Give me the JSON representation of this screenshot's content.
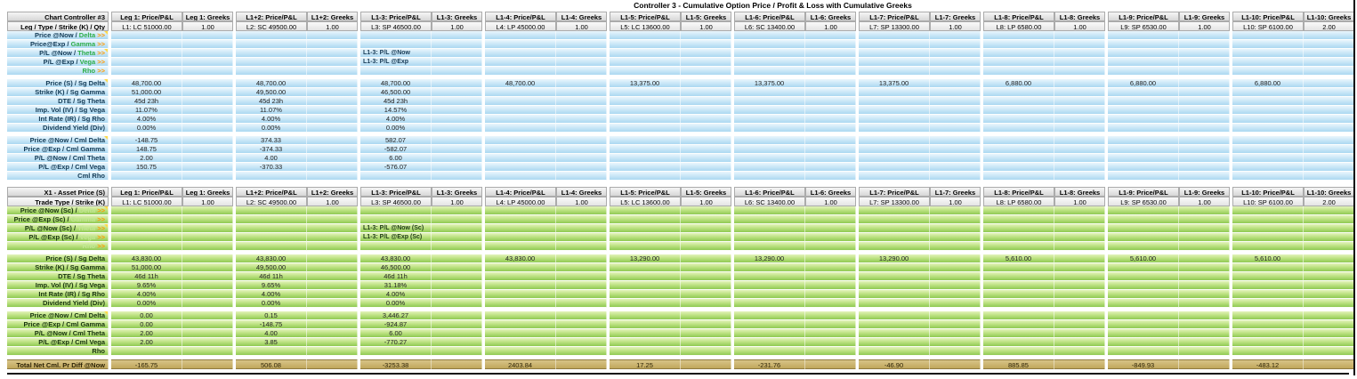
{
  "title": "Controller 3 - Cumulative Option Price / Profit & Loss with Cumulative Greeks",
  "arrow_symbol": ">>",
  "palette": {
    "c-gray-hi": "#f5f5f5",
    "c-gray-lo": "#d7d7d7",
    "c-blue-hi": "#eaf6fd",
    "c-blue-lo": "#abd8f1",
    "c-green-hi": "#e3f3bb",
    "c-green-lo": "#8fca52",
    "c-tan-hi": "#d8c488",
    "c-tan-lo": "#c0a75c",
    "c-greek": "#2fae4a",
    "c-greek-pale": "#c2e794",
    "c-arrow": "#ff9a00",
    "c-flag": "#ffd94a"
  },
  "groups": [
    {
      "pl": "Leg 1: Price/P&L",
      "greeks": "Leg 1: Greeks",
      "leg": "L1: LC 51000.00",
      "qty": "1.00"
    },
    {
      "pl": "L1+2: Price/P&L",
      "greeks": "L1+2: Greeks",
      "leg": "L2: SC 49500.00",
      "qty": "1.00"
    },
    {
      "pl": "L1-3: Price/P&L",
      "greeks": "L1-3: Greeks",
      "leg": "L3: SP 46500.00",
      "qty": "1.00"
    },
    {
      "pl": "L1-4: Price/P&L",
      "greeks": "L1-4: Greeks",
      "leg": "L4: LP 45000.00",
      "qty": "1.00"
    },
    {
      "pl": "L1-5: Price/P&L",
      "greeks": "L1-5: Greeks",
      "leg": "L5: LC 13600.00",
      "qty": "1.00"
    },
    {
      "pl": "L1-6: Price/P&L",
      "greeks": "L1-6: Greeks",
      "leg": "L6: SC 13400.00",
      "qty": "1.00"
    },
    {
      "pl": "L1-7: Price/P&L",
      "greeks": "L1-7: Greeks",
      "leg": "L7: SP 13300.00",
      "qty": "1.00"
    },
    {
      "pl": "L1-8: Price/P&L",
      "greeks": "L1-8: Greeks",
      "leg": "L8: LP 6580.00",
      "qty": "1.00"
    },
    {
      "pl": "L1-9: Price/P&L",
      "greeks": "L1-9: Greeks",
      "leg": "L9: SP 6530.00",
      "qty": "1.00"
    },
    {
      "pl": "L1-10: Price/P&L",
      "greeks": "L1-10: Greeks",
      "leg": "L10: SP 6100.00",
      "qty": "2.00"
    }
  ],
  "sections": [
    {
      "theme": "blue",
      "corner": "Chart Controller #3",
      "leg_label": "Leg / Type / Strike (K) / Qty",
      "rows": [
        {
          "t": "greek",
          "label": "Price @Now /",
          "greek": "Delta",
          "flag": true
        },
        {
          "t": "greek",
          "label": "Price@Exp /",
          "greek": "Gamma"
        },
        {
          "t": "greek",
          "label": "P/L @Now /",
          "greek": "Theta",
          "flag": true,
          "notes": {
            "2": "L1-3: P/L @Now"
          }
        },
        {
          "t": "greek",
          "label": "P/L @Exp /",
          "greek": "Vega",
          "notes": {
            "2": "L1-3: P/L @Exp"
          }
        },
        {
          "t": "greek",
          "label": "",
          "greek": "Rho"
        },
        {
          "t": "gap"
        },
        {
          "t": "data",
          "label": "Price (S) / Sg Delta",
          "flag": true,
          "values": [
            "48,700.00",
            "48,700.00",
            "48,700.00",
            "48,700.00",
            "13,375.00",
            "13,375.00",
            "13,375.00",
            "6,880.00",
            "6,880.00",
            "6,880.00"
          ]
        },
        {
          "t": "data",
          "label": "Strike (K) / Sg Gamma",
          "values": [
            "51,000.00",
            "49,500.00",
            "46,500.00",
            "",
            "",
            "",
            "",
            "",
            "",
            ""
          ]
        },
        {
          "t": "data",
          "label": "DTE / Sg Theta",
          "values": [
            "45d 23h",
            "45d 23h",
            "45d 23h",
            "",
            "",
            "",
            "",
            "",
            "",
            ""
          ]
        },
        {
          "t": "data",
          "label": "Imp. Vol (IV) / Sg Vega",
          "values": [
            "11.07%",
            "11.07%",
            "14.57%",
            "",
            "",
            "",
            "",
            "",
            "",
            ""
          ]
        },
        {
          "t": "data",
          "label": "Int Rate (IR) / Sg Rho",
          "values": [
            "4.00%",
            "4.00%",
            "4.00%",
            "",
            "",
            "",
            "",
            "",
            "",
            ""
          ]
        },
        {
          "t": "data",
          "label": "Dividend Yield (Div)",
          "values": [
            "0.00%",
            "0.00%",
            "0.00%",
            "",
            "",
            "",
            "",
            "",
            "",
            ""
          ]
        },
        {
          "t": "gap"
        },
        {
          "t": "data",
          "label": "Price @Now / Cml Delta",
          "flag": true,
          "values": [
            "-148.75",
            "374.33",
            "582.07",
            "",
            "",
            "",
            "",
            "",
            "",
            ""
          ]
        },
        {
          "t": "data",
          "label": "Price @Exp / Cml Gamma",
          "values": [
            "148.75",
            "-374.33",
            "-582.07",
            "",
            "",
            "",
            "",
            "",
            "",
            ""
          ]
        },
        {
          "t": "data",
          "label": "P/L @Now / Cml Theta",
          "values": [
            "2.00",
            "4.00",
            "6.00",
            "",
            "",
            "",
            "",
            "",
            "",
            ""
          ]
        },
        {
          "t": "data",
          "label": "P/L @Exp / Cml Vega",
          "values": [
            "150.75",
            "-370.33",
            "-576.07",
            "",
            "",
            "",
            "",
            "",
            "",
            ""
          ]
        },
        {
          "t": "data",
          "label": "Cml Rho",
          "values": [
            "",
            "",
            "",
            "",
            "",
            "",
            "",
            "",
            "",
            ""
          ]
        }
      ]
    },
    {
      "theme": "green",
      "corner": "X1 - Asset Price (S)",
      "leg_label": "Trade Type / Strike (K)",
      "rows": [
        {
          "t": "greek",
          "label": "Price @Now (Sc) /",
          "greek": "Delta",
          "flag": true
        },
        {
          "t": "greek",
          "label": "Price @Exp (Sc) /",
          "greek": "Gamma"
        },
        {
          "t": "greek",
          "label": "P/L @Now (Sc) /",
          "greek": "Theta",
          "flag": true,
          "notes": {
            "2": "L1-3: P/L @Now (Sc)"
          }
        },
        {
          "t": "greek",
          "label": "P/L @Exp (Sc) /",
          "greek": "Vega",
          "notes": {
            "2": "L1-3: P/L @Exp (Sc)"
          }
        },
        {
          "t": "greek",
          "label": "",
          "greek": "Rho"
        },
        {
          "t": "gap"
        },
        {
          "t": "data",
          "label": "Price (S) / Sg Delta",
          "values": [
            "43,830.00",
            "43,830.00",
            "43,830.00",
            "43,830.00",
            "13,290.00",
            "13,290.00",
            "13,290.00",
            "5,610.00",
            "5,610.00",
            "5,610.00"
          ]
        },
        {
          "t": "data",
          "label": "Strike (K) / Sg Gamma",
          "values": [
            "51,000.00",
            "49,500.00",
            "46,500.00",
            "",
            "",
            "",
            "",
            "",
            "",
            ""
          ]
        },
        {
          "t": "data",
          "label": "DTE / Sg Theta",
          "values": [
            "46d 11h",
            "46d 11h",
            "46d 11h",
            "",
            "",
            "",
            "",
            "",
            "",
            ""
          ]
        },
        {
          "t": "data",
          "label": "Imp. Vol (IV) / Sg Vega",
          "values": [
            "9.65%",
            "9.65%",
            "31.18%",
            "",
            "",
            "",
            "",
            "",
            "",
            ""
          ]
        },
        {
          "t": "data",
          "label": "Int Rate (IR) / Sg Rho",
          "values": [
            "4.00%",
            "4.00%",
            "4.00%",
            "",
            "",
            "",
            "",
            "",
            "",
            ""
          ]
        },
        {
          "t": "data",
          "label": "Dividend Yield (Div)",
          "values": [
            "0.00%",
            "0.00%",
            "0.00%",
            "",
            "",
            "",
            "",
            "",
            "",
            ""
          ]
        },
        {
          "t": "gap"
        },
        {
          "t": "data",
          "label": "Price @Now / Cml Delta",
          "flag": true,
          "values": [
            "0.00",
            "0.15",
            "3,446.27",
            "",
            "",
            "",
            "",
            "",
            "",
            ""
          ]
        },
        {
          "t": "data",
          "label": "Price @Exp / Cml Gamma",
          "values": [
            "0.00",
            "-148.75",
            "-924.87",
            "",
            "",
            "",
            "",
            "",
            "",
            ""
          ]
        },
        {
          "t": "data",
          "label": "P/L @Now / Cml Theta",
          "values": [
            "2.00",
            "4.00",
            "6.00",
            "",
            "",
            "",
            "",
            "",
            "",
            ""
          ]
        },
        {
          "t": "data",
          "label": "P/L @Exp / Cml Vega",
          "values": [
            "2.00",
            "3.85",
            "-770.27",
            "",
            "",
            "",
            "",
            "",
            "",
            ""
          ]
        },
        {
          "t": "data",
          "label": "Rho",
          "values": [
            "",
            "",
            "",
            "",
            "",
            "",
            "",
            "",
            "",
            ""
          ]
        },
        {
          "t": "gap"
        },
        {
          "t": "total",
          "label": "Total Net Cml. Pr Diff @Now",
          "values": [
            "-165.75",
            "506.08",
            "-3253.38",
            "2403.84",
            "17.25",
            "-231.76",
            "-46.90",
            "885.85",
            "-849.93",
            "-483.12"
          ]
        }
      ]
    }
  ]
}
